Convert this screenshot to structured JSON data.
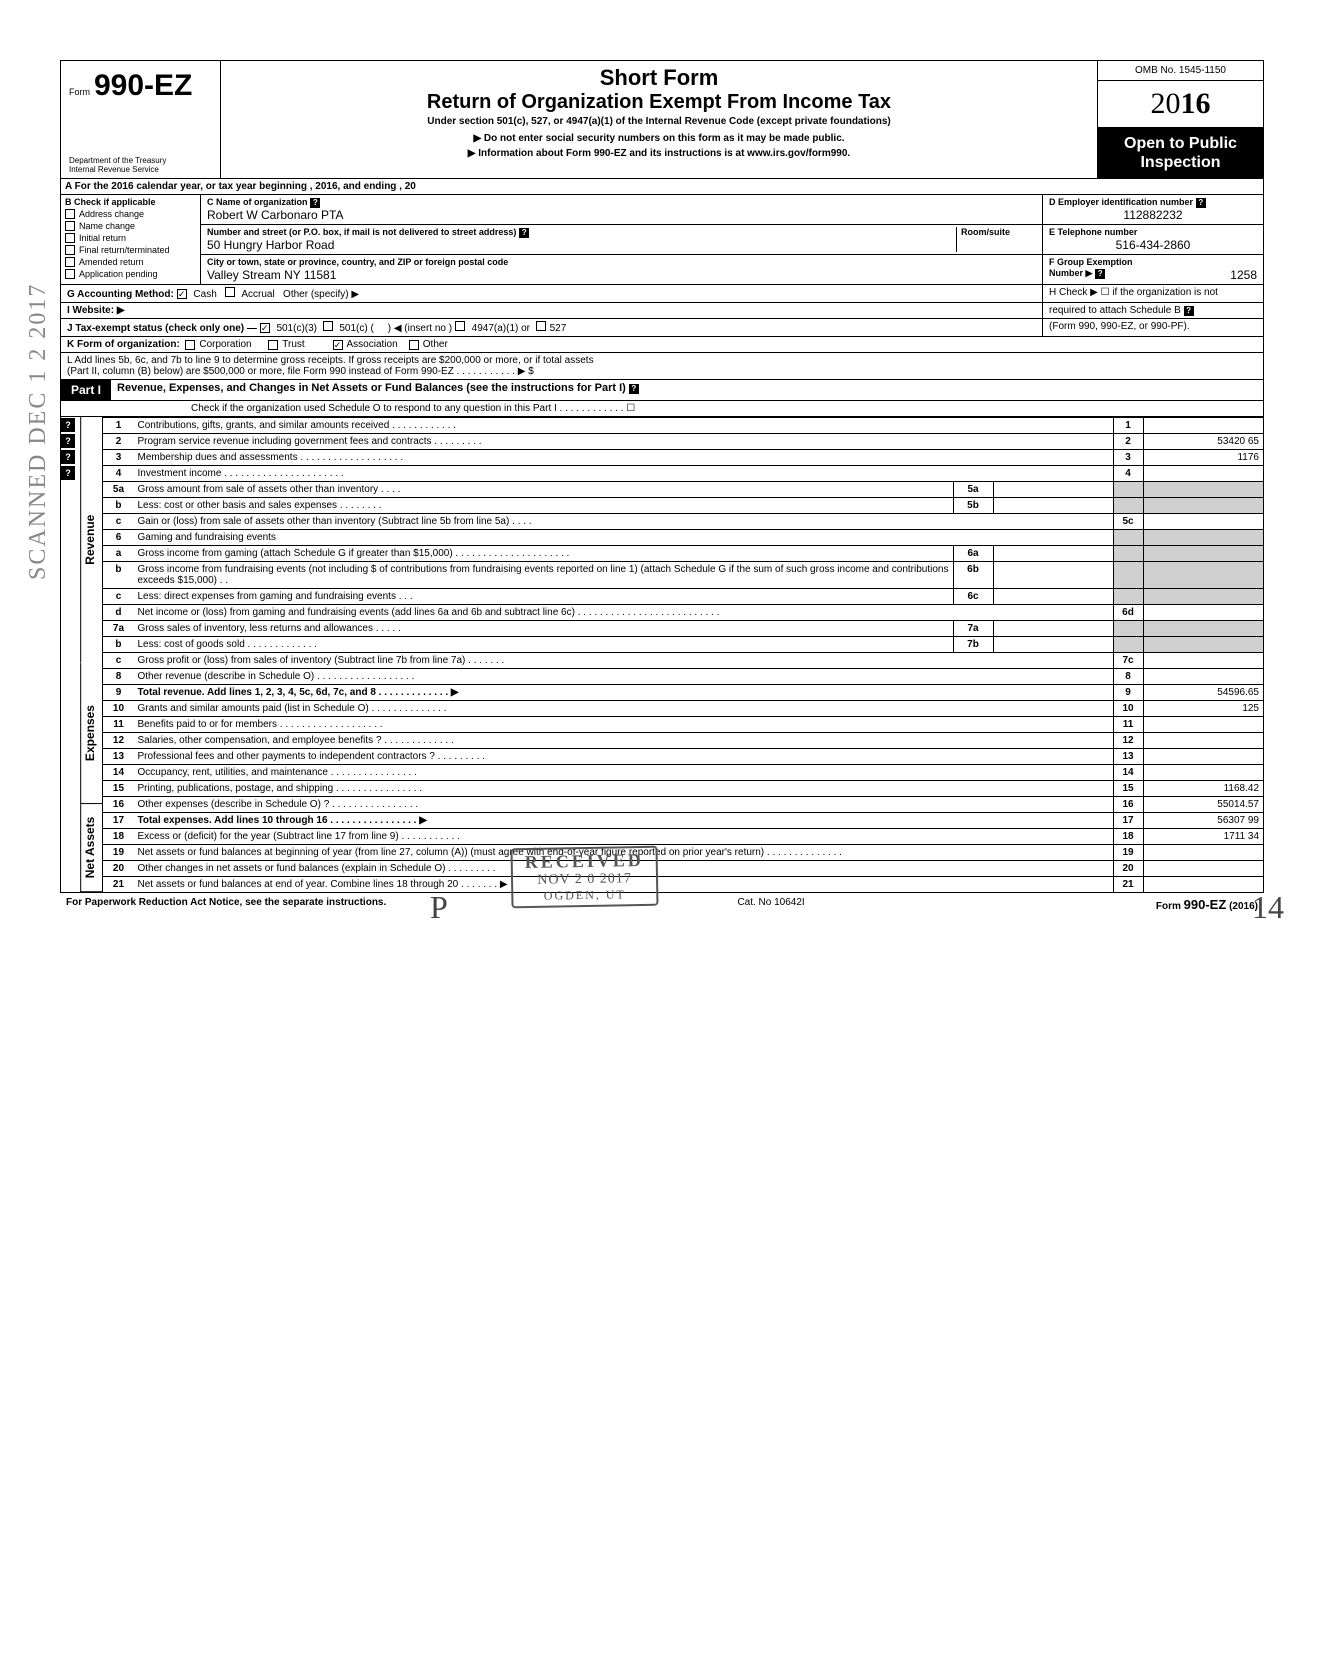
{
  "vertical_stamp": "SCANNED DEC 1 2 2017",
  "header": {
    "form_label": "Form",
    "form_number": "990-EZ",
    "short_form": "Short Form",
    "return_title": "Return of Organization Exempt From Income Tax",
    "section_text": "Under section 501(c), 527, or 4947(a)(1) of the Internal Revenue Code (except private foundations)",
    "subtitle": "▶ Do not enter social security numbers on this form as it may be made public.",
    "info_text": "▶ Information about Form 990-EZ and its instructions is at www.irs.gov/form990.",
    "dept1": "Department of the Treasury",
    "dept2": "Internal Revenue Service",
    "omb": "OMB No. 1545-1150",
    "year_prefix": "20",
    "year_bold": "16",
    "open1": "Open to Public",
    "open2": "Inspection"
  },
  "row_a": "A  For the 2016 calendar year, or tax year beginning                                                        , 2016, and ending                                          , 20",
  "col_b": {
    "label": "B  Check if applicable",
    "items": [
      "Address change",
      "Name change",
      "Initial return",
      "Final return/terminated",
      "Amended return",
      "Application pending"
    ]
  },
  "col_c": {
    "name_label": "C  Name of organization",
    "name_value": "Robert W  Carbonaro PTA",
    "street_label": "Number and street (or P.O. box, if mail is not delivered to street address)",
    "room_label": "Room/suite",
    "street_value": "50 Hungry Harbor Road",
    "city_label": "City or town, state or province, country, and ZIP or foreign postal code",
    "city_value": "Valley Stream NY 11581"
  },
  "col_d": {
    "ein_label": "D  Employer identification number",
    "ein_value": "112882232",
    "phone_label": "E  Telephone number",
    "phone_value": "516-434-2860",
    "group_label": "F  Group Exemption",
    "group_label2": "Number  ▶",
    "group_value": "1258"
  },
  "row_g": {
    "label": "G  Accounting Method:",
    "cash": "Cash",
    "accrual": "Accrual",
    "other": "Other (specify) ▶"
  },
  "row_h": "H  Check  ▶  ☐  if the organization is not",
  "row_h2": "required to attach Schedule B",
  "row_h3": "(Form 990, 990-EZ, or 990-PF).",
  "row_i": "I   Website: ▶",
  "row_j": {
    "label": "J  Tax-exempt status (check only one)  —",
    "opt1": "501(c)(3)",
    "opt2": "501(c) (",
    "opt2b": ")  ◀  (insert no )",
    "opt3": "4947(a)(1) or",
    "opt4": "527"
  },
  "row_k": {
    "label": "K  Form of organization:",
    "opt1": "Corporation",
    "opt2": "Trust",
    "opt3": "Association",
    "opt4": "Other"
  },
  "row_l": "L  Add lines 5b, 6c, and 7b to line 9 to determine gross receipts. If gross receipts are $200,000 or more, or if total assets",
  "row_l2": "(Part II, column (B) below) are $500,000 or more, file Form 990 instead of Form 990-EZ  .    .    .    .    .    .    .    .    .    .    .   ▶   $",
  "part1": {
    "label": "Part I",
    "title": "Revenue, Expenses, and Changes in Net Assets or Fund Balances (see the instructions for Part I)",
    "check": "Check if the organization used Schedule O to respond to any question in this Part I  .    .    .    .    .    .    .    .    .    .    .    .    ☐"
  },
  "sections": {
    "revenue": "Revenue",
    "expenses": "Expenses",
    "netassets": "Net Assets"
  },
  "lines": [
    {
      "num": "1",
      "desc": "Contributions, gifts, grants, and similar amounts received .    .    .    .    .    .    .    .    .    .    .    .",
      "rnum": "1",
      "val": ""
    },
    {
      "num": "2",
      "desc": "Program service revenue including government fees and contracts    .    .    .    .    .    .    .    .    .",
      "rnum": "2",
      "val": "53420 65"
    },
    {
      "num": "3",
      "desc": "Membership dues and assessments .    .    .    .    .    .    .    .    .    .    .    .    .    .    .    .    .    .    .",
      "rnum": "3",
      "val": "1176"
    },
    {
      "num": "4",
      "desc": "Investment income    .    .    .    .    .    .    .    .    .    .    .    .    .    .    .    .    .    .    .    .    .    .",
      "rnum": "4",
      "val": ""
    },
    {
      "num": "5a",
      "desc": "Gross amount from sale of assets other than inventory    .    .    .    .",
      "snum": "5a",
      "sval": ""
    },
    {
      "num": "b",
      "desc": "Less: cost or other basis and sales expenses .    .    .    .    .    .    .    .",
      "snum": "5b",
      "sval": ""
    },
    {
      "num": "c",
      "desc": "Gain or (loss) from sale of assets other than inventory (Subtract line 5b from line 5a) .    .    .    .",
      "rnum": "5c",
      "val": ""
    },
    {
      "num": "6",
      "desc": "Gaming and fundraising events"
    },
    {
      "num": "a",
      "desc": "Gross income from gaming (attach Schedule G if greater than $15,000) .    .    .    .    .    .    .    .    .    .    .    .    .    .    .    .    .    .    .    .    .",
      "snum": "6a",
      "sval": ""
    },
    {
      "num": "b",
      "desc": "Gross income from fundraising events (not including  $                              of contributions from fundraising events reported on line 1) (attach Schedule G if the sum of such gross income and contributions exceeds $15,000) .    .",
      "snum": "6b",
      "sval": ""
    },
    {
      "num": "c",
      "desc": "Less: direct expenses from gaming and fundraising events    .    .    .",
      "snum": "6c",
      "sval": ""
    },
    {
      "num": "d",
      "desc": "Net income or (loss) from gaming and fundraising events (add lines 6a and 6b and subtract line 6c)    .    .    .    .    .    .    .    .    .    .    .    .    .    .    .    .    .    .    .    .    .    .    .    .    .    .",
      "rnum": "6d",
      "val": ""
    },
    {
      "num": "7a",
      "desc": "Gross sales of inventory, less returns and allowances   .    .    .    .    .",
      "snum": "7a",
      "sval": ""
    },
    {
      "num": "b",
      "desc": "Less: cost of goods sold       .    .    .    .    .    .    .    .    .    .    .    .    .",
      "snum": "7b",
      "sval": ""
    },
    {
      "num": "c",
      "desc": "Gross profit or (loss) from sales of inventory (Subtract line 7b from line 7a)    .    .    .    .    .    .    .",
      "rnum": "7c",
      "val": ""
    },
    {
      "num": "8",
      "desc": "Other revenue (describe in Schedule O) .    .    .    .    .    .    .    .    .    .    .    .    .    .    .    .    .    .",
      "rnum": "8",
      "val": ""
    },
    {
      "num": "9",
      "desc": "Total revenue. Add lines 1, 2, 3, 4, 5c, 6d, 7c, and 8    .    .    .    .    .    .    .    .    .    .    .    .    .   ▶",
      "rnum": "9",
      "val": "54596.65",
      "bold": true
    },
    {
      "num": "10",
      "desc": "Grants and similar amounts paid (list in Schedule O)    .    .    .    .    .    .    .    .    .    .    .    .    .    .",
      "rnum": "10",
      "val": "125"
    },
    {
      "num": "11",
      "desc": "Benefits paid to or for members    .    .    .    .    .    .    .    .    .    .    .    .    .    .    .    .    .    .    .",
      "rnum": "11",
      "val": ""
    },
    {
      "num": "12",
      "desc": "Salaries, other compensation, and employee benefits ?    .    .    .    .    .    .    .    .    .    .    .    .    .",
      "rnum": "12",
      "val": ""
    },
    {
      "num": "13",
      "desc": "Professional fees and other payments to independent contractors ?    .    .    .    .    .    .    .    .    .",
      "rnum": "13",
      "val": ""
    },
    {
      "num": "14",
      "desc": "Occupancy, rent, utilities, and maintenance    .    .    .    .    .    .    .    .    .    .    .    .    .    .    .    .",
      "rnum": "14",
      "val": ""
    },
    {
      "num": "15",
      "desc": "Printing, publications, postage, and shipping .    .    .    .    .    .    .    .    .    .    .    .    .    .    .    .",
      "rnum": "15",
      "val": "1168.42"
    },
    {
      "num": "16",
      "desc": "Other expenses (describe in Schedule O) ?   .    .    .    .    .    .    .    .    .    .    .    .    .    .    .    .",
      "rnum": "16",
      "val": "55014.57"
    },
    {
      "num": "17",
      "desc": "Total expenses. Add lines 10 through 16  .    .    .    .    .    .    .    .    .    .    .    .    .    .    .    .   ▶",
      "rnum": "17",
      "val": "56307 99",
      "bold": true
    },
    {
      "num": "18",
      "desc": "Excess or (deficit) for the year (Subtract line 17 from line 9)   .    .    .    .    .    .    .    .    .    .    .",
      "rnum": "18",
      "val": "1711 34"
    },
    {
      "num": "19",
      "desc": "Net assets or fund balances at beginning of year (from line 27, column (A)) (must agree with end-of-year figure reported on prior year's return)    .    .    .    .    .    .    .    .    .    .    .    .    .    .",
      "rnum": "19",
      "val": ""
    },
    {
      "num": "20",
      "desc": "Other changes in net assets or fund balances (explain in Schedule O) .    .    .    .    .    .    .    .    .",
      "rnum": "20",
      "val": ""
    },
    {
      "num": "21",
      "desc": "Net assets or fund balances at end of year. Combine lines 18 through 20   .    .    .    .    .    .    .   ▶",
      "rnum": "21",
      "val": ""
    }
  ],
  "footer": {
    "left": "For Paperwork Reduction Act Notice, see the separate instructions.",
    "center": "Cat. No  10642I",
    "right": "Form 990-EZ  (2016)"
  },
  "stamp": {
    "r1": "RECEIVED",
    "r2": "NOV 2 0 2017",
    "r3": "OGDEN, UT"
  },
  "hw1": "P",
  "hw2": "14"
}
